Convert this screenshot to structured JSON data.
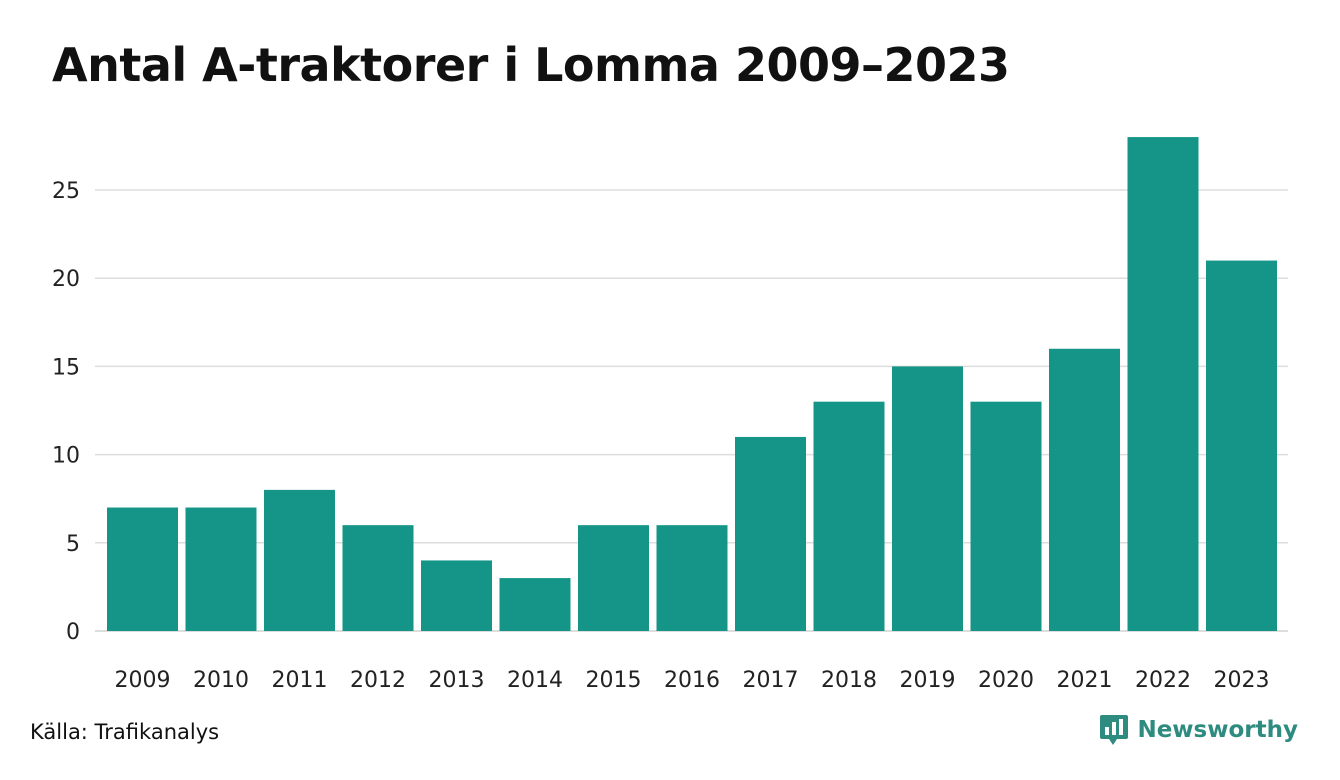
{
  "colors": {
    "bar": "#149587",
    "grid": "#dddddd",
    "brand": "#2e8b7f"
  },
  "chart_data": {
    "type": "bar",
    "title": "Antal A-traktorer i Lomma 2009–2023",
    "xlabel": "",
    "ylabel": "",
    "categories": [
      "2009",
      "2010",
      "2011",
      "2012",
      "2013",
      "2014",
      "2015",
      "2016",
      "2017",
      "2018",
      "2019",
      "2020",
      "2021",
      "2022",
      "2023"
    ],
    "values": [
      7,
      7,
      8,
      6,
      4,
      3,
      6,
      6,
      11,
      13,
      15,
      13,
      16,
      28,
      21
    ],
    "ylim": [
      0,
      29
    ],
    "yticks": [
      0,
      5,
      10,
      15,
      20,
      25
    ],
    "grid": true,
    "legend": "none"
  },
  "footer": {
    "source": "Källa: Trafikanalys",
    "brand": "Newsworthy",
    "brand_icon": "newsworthy-logo-icon"
  }
}
